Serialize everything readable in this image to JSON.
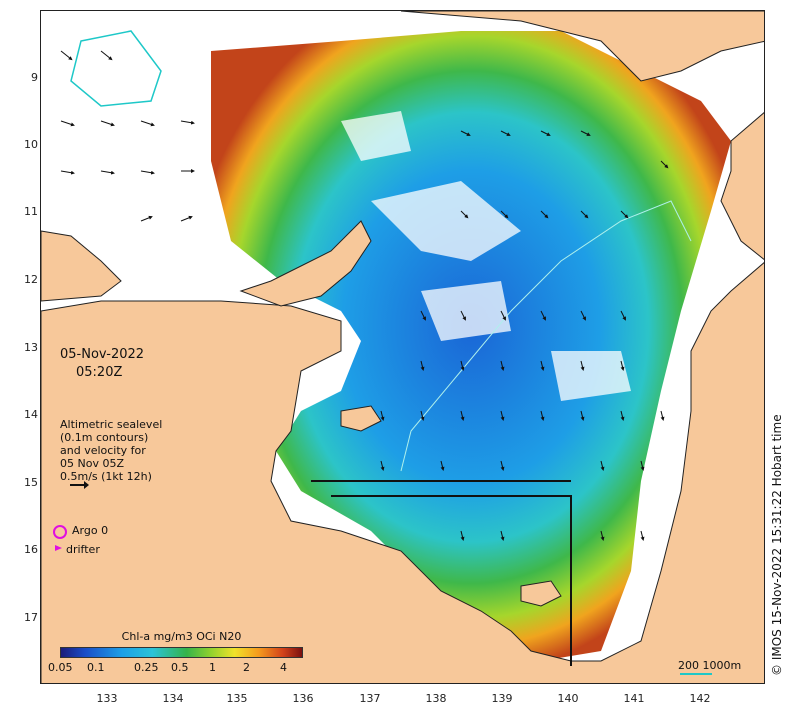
{
  "map": {
    "y_ticks": [
      "9",
      "10",
      "11",
      "12",
      "13",
      "14",
      "15",
      "16",
      "17"
    ],
    "x_ticks": [
      "133",
      "134",
      "135",
      "136",
      "137",
      "138",
      "139",
      "140",
      "141",
      "142"
    ],
    "date": "05-Nov-2022",
    "time": "05:20Z",
    "overlay_note": {
      "line1": "Altimetric sealevel",
      "line2": "(0.1m contours)",
      "line3": "and velocity for",
      "line4": "05 Nov 05Z",
      "line5": "0.5m/s (1kt 12h)"
    },
    "legend": {
      "argo_label": "Argo 0",
      "drifter_label": "drifter"
    },
    "colorbar": {
      "title": "Chl-a mg/m3 OCi N20",
      "ticks": [
        "0.05",
        "0.1",
        "0.25",
        "0.5",
        "1",
        "2",
        "4"
      ]
    },
    "scale": {
      "label": "200  1000m"
    },
    "credit": "© IMOS 15-Nov-2022 15:31:22 Hobart time",
    "colors": {
      "land": "#f7c89a",
      "ocean_low_chl": "#1e9ee6",
      "coast_high_chl": "#d2421a",
      "argo": "#e00fe0",
      "isobath": "#1ec8c8"
    }
  }
}
